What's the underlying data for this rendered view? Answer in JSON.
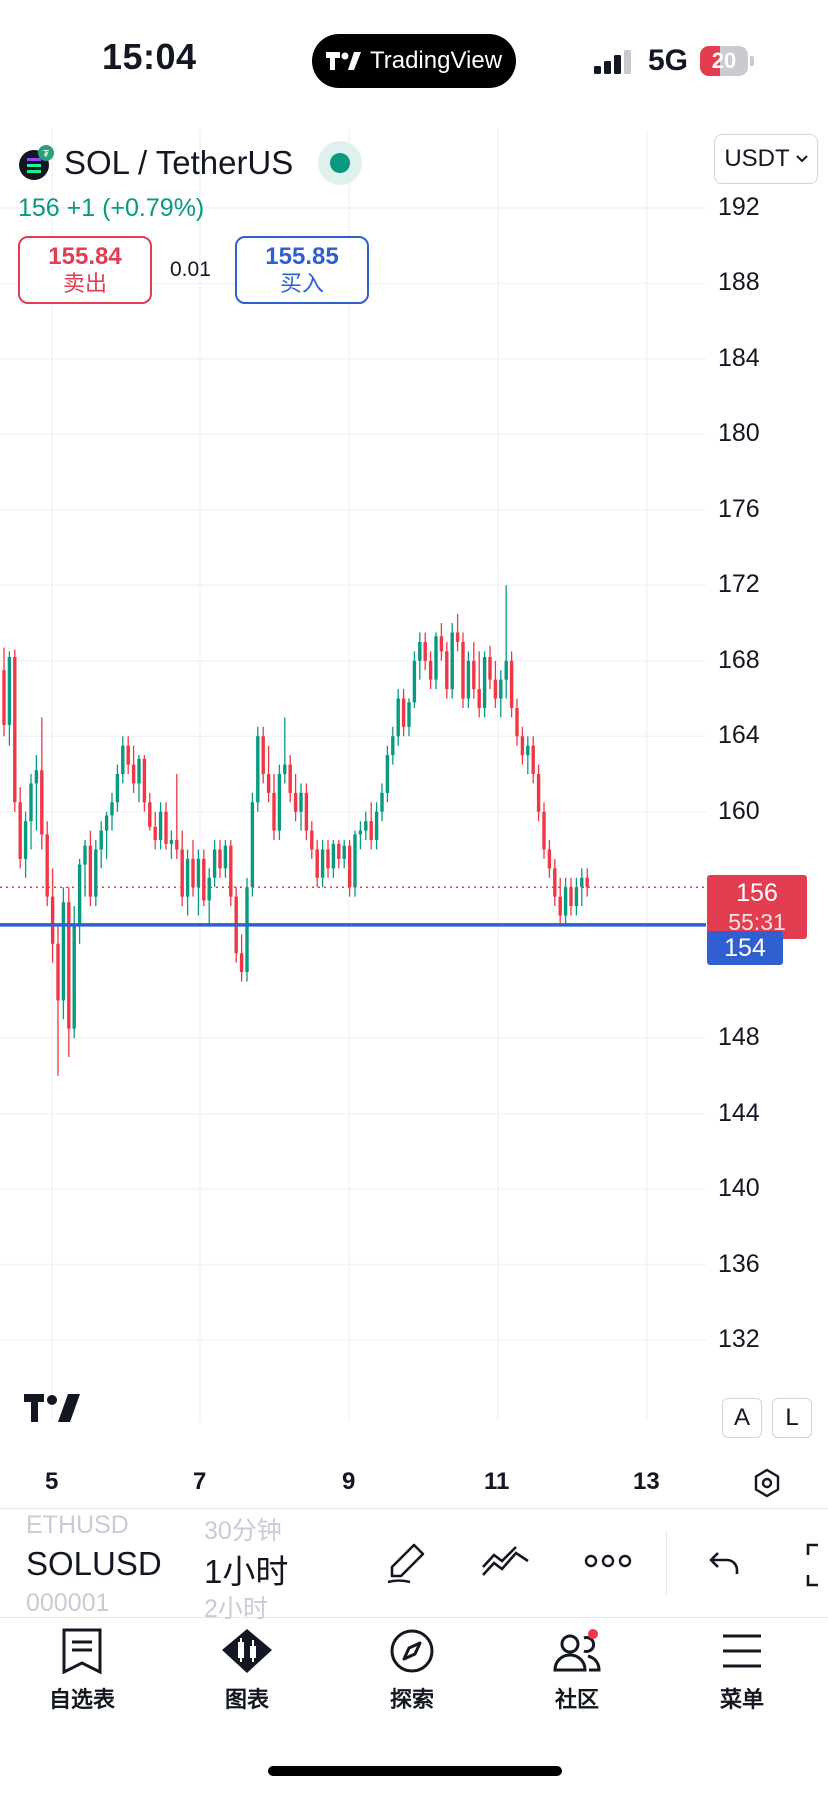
{
  "status_bar": {
    "time": "15:04",
    "app_pill": "TradingView",
    "network": "5G",
    "battery": "20"
  },
  "symbol": {
    "title": "SOL / TetherUS",
    "change_text": "156  +1 (+0.79%)",
    "sell_price": "155.84",
    "sell_label": "卖出",
    "spread": "0.01",
    "buy_price": "155.85",
    "buy_label": "买入",
    "currency": "USDT"
  },
  "chart_data": {
    "type": "candlestick",
    "y_ticks": [
      "192",
      "188",
      "184",
      "180",
      "176",
      "172",
      "168",
      "164",
      "160",
      "148",
      "144",
      "140",
      "136",
      "132"
    ],
    "x_ticks": [
      "5",
      "7",
      "9",
      "11",
      "13"
    ],
    "ylim": [
      130,
      194
    ],
    "last_price": "156",
    "countdown": "55:31",
    "level_line": "154",
    "candles": [
      [
        167.5,
        168.7,
        164.0,
        164.6
      ],
      [
        164.6,
        168.5,
        163.5,
        168.2
      ],
      [
        168.2,
        168.6,
        160.0,
        160.5
      ],
      [
        160.5,
        161.3,
        157.0,
        157.5
      ],
      [
        157.5,
        160.0,
        156.5,
        159.5
      ],
      [
        159.5,
        162.0,
        158.0,
        161.5
      ],
      [
        161.5,
        163.0,
        159.0,
        162.2
      ],
      [
        162.2,
        165.0,
        158.0,
        158.8
      ],
      [
        158.8,
        159.5,
        155.0,
        155.5
      ],
      [
        155.5,
        157.0,
        152.0,
        153.0
      ],
      [
        153.0,
        154.0,
        146.0,
        150.0
      ],
      [
        150.0,
        156.0,
        149.0,
        155.2
      ],
      [
        155.2,
        156.0,
        147.0,
        148.5
      ],
      [
        148.5,
        155.0,
        148.0,
        154.0
      ],
      [
        154.0,
        157.5,
        153.0,
        157.2
      ],
      [
        157.2,
        158.5,
        155.5,
        158.2
      ],
      [
        158.2,
        159.0,
        155.0,
        155.5
      ],
      [
        155.5,
        158.5,
        155.0,
        158.0
      ],
      [
        158.0,
        159.5,
        157.0,
        159.0
      ],
      [
        159.0,
        160.0,
        157.5,
        159.8
      ],
      [
        159.8,
        161.0,
        159.0,
        160.5
      ],
      [
        160.5,
        162.5,
        160.0,
        162.0
      ],
      [
        162.0,
        164.0,
        161.5,
        163.5
      ],
      [
        163.5,
        164.0,
        162.0,
        162.5
      ],
      [
        162.5,
        163.5,
        161.0,
        161.5
      ],
      [
        161.5,
        163.0,
        160.5,
        162.8
      ],
      [
        162.8,
        163.0,
        160.0,
        160.5
      ],
      [
        160.5,
        161.0,
        159.0,
        159.2
      ],
      [
        159.2,
        160.0,
        158.0,
        158.5
      ],
      [
        158.5,
        160.5,
        158.0,
        160.0
      ],
      [
        160.0,
        160.5,
        158.0,
        158.3
      ],
      [
        158.3,
        159.0,
        157.5,
        158.5
      ],
      [
        158.5,
        162.0,
        157.5,
        158.0
      ],
      [
        158.0,
        159.0,
        155.0,
        155.5
      ],
      [
        155.5,
        158.0,
        154.5,
        157.5
      ],
      [
        157.5,
        158.5,
        155.5,
        156.0
      ],
      [
        156.0,
        158.0,
        154.5,
        157.5
      ],
      [
        157.5,
        158.0,
        155.0,
        155.3
      ],
      [
        155.3,
        157.0,
        154.0,
        156.5
      ],
      [
        156.5,
        158.5,
        156.0,
        158.0
      ],
      [
        158.0,
        158.5,
        156.5,
        157.0
      ],
      [
        157.0,
        158.5,
        156.5,
        158.2
      ],
      [
        158.2,
        158.5,
        155.0,
        155.5
      ],
      [
        155.5,
        156.0,
        152.0,
        152.5
      ],
      [
        152.5,
        153.5,
        151.0,
        151.5
      ],
      [
        151.5,
        156.5,
        151.0,
        156.0
      ],
      [
        156.0,
        161.0,
        155.5,
        160.5
      ],
      [
        160.5,
        164.5,
        160.0,
        164.0
      ],
      [
        164.0,
        164.5,
        161.5,
        162.0
      ],
      [
        162.0,
        163.5,
        160.5,
        161.0
      ],
      [
        161.0,
        162.0,
        158.5,
        159.0
      ],
      [
        159.0,
        162.5,
        158.5,
        162.0
      ],
      [
        162.0,
        165.0,
        161.5,
        162.5
      ],
      [
        162.5,
        163.0,
        160.5,
        161.0
      ],
      [
        161.0,
        162.0,
        159.5,
        160.0
      ],
      [
        160.0,
        161.5,
        159.0,
        161.0
      ],
      [
        161.0,
        161.5,
        158.5,
        159.0
      ],
      [
        159.0,
        159.5,
        157.5,
        158.0
      ],
      [
        158.0,
        158.5,
        156.0,
        156.5
      ],
      [
        156.5,
        158.5,
        156.0,
        158.0
      ],
      [
        158.0,
        158.5,
        156.5,
        157.0
      ],
      [
        157.0,
        158.5,
        156.5,
        158.3
      ],
      [
        158.3,
        158.5,
        157.0,
        157.5
      ],
      [
        157.5,
        158.5,
        157.0,
        158.2
      ],
      [
        158.2,
        158.5,
        155.5,
        156.0
      ],
      [
        156.0,
        159.0,
        155.5,
        158.8
      ],
      [
        158.8,
        159.5,
        158.0,
        159.0
      ],
      [
        159.0,
        160.0,
        158.5,
        159.5
      ],
      [
        159.5,
        160.5,
        158.0,
        158.5
      ],
      [
        158.5,
        160.5,
        158.0,
        160.0
      ],
      [
        160.0,
        161.5,
        159.5,
        161.0
      ],
      [
        161.0,
        163.5,
        160.5,
        163.0
      ],
      [
        163.0,
        164.5,
        162.5,
        164.0
      ],
      [
        164.0,
        166.5,
        163.5,
        166.0
      ],
      [
        166.0,
        166.5,
        164.0,
        164.5
      ],
      [
        164.5,
        166.0,
        164.0,
        165.8
      ],
      [
        165.8,
        168.5,
        165.5,
        168.0
      ],
      [
        168.0,
        169.5,
        167.0,
        169.0
      ],
      [
        169.0,
        169.5,
        167.5,
        168.0
      ],
      [
        168.0,
        168.5,
        166.5,
        167.0
      ],
      [
        167.0,
        169.5,
        166.5,
        169.3
      ],
      [
        169.3,
        170.0,
        168.0,
        168.5
      ],
      [
        168.5,
        169.0,
        166.0,
        166.5
      ],
      [
        166.5,
        170.0,
        166.0,
        169.5
      ],
      [
        169.5,
        170.5,
        168.5,
        169.0
      ],
      [
        169.0,
        169.5,
        165.5,
        166.0
      ],
      [
        166.0,
        168.5,
        165.5,
        168.0
      ],
      [
        168.0,
        169.0,
        166.0,
        166.5
      ],
      [
        166.5,
        168.5,
        165.0,
        165.5
      ],
      [
        165.5,
        168.5,
        165.0,
        168.2
      ],
      [
        168.2,
        168.8,
        166.5,
        167.0
      ],
      [
        167.0,
        168.0,
        165.5,
        166.0
      ],
      [
        166.0,
        167.5,
        165.0,
        167.0
      ],
      [
        167.0,
        172.0,
        166.0,
        168.0
      ],
      [
        168.0,
        168.5,
        165.0,
        165.5
      ],
      [
        165.5,
        166.0,
        163.5,
        164.0
      ],
      [
        164.0,
        164.5,
        162.5,
        163.0
      ],
      [
        163.0,
        164.0,
        162.0,
        163.5
      ],
      [
        163.5,
        164.0,
        161.5,
        162.0
      ],
      [
        162.0,
        162.5,
        159.5,
        160.0
      ],
      [
        160.0,
        160.5,
        157.5,
        158.0
      ],
      [
        158.0,
        158.5,
        156.5,
        157.0
      ],
      [
        157.0,
        157.5,
        155.0,
        155.5
      ],
      [
        155.5,
        156.5,
        154.0,
        154.5
      ],
      [
        154.5,
        156.5,
        154.0,
        156.0
      ],
      [
        156.0,
        156.5,
        154.5,
        155.0
      ],
      [
        155.0,
        156.5,
        154.5,
        156.0
      ],
      [
        156.0,
        157.0,
        155.0,
        156.5
      ],
      [
        156.5,
        157.0,
        155.5,
        156.0
      ]
    ]
  },
  "toolbar": {
    "prev_symbol": "ETHUSD",
    "symbol": "SOLUSD",
    "next_symbol": "000001",
    "prev_interval": "30分钟",
    "interval": "1小时",
    "next_interval": "2小时",
    "scale_auto": "A",
    "scale_log": "L"
  },
  "nav": {
    "watchlist": "自选表",
    "chart": "图表",
    "explore": "探索",
    "community": "社区",
    "menu": "菜单"
  },
  "colors": {
    "up": "#089981",
    "down": "#f23645",
    "level": "#2f5fd0",
    "last_tag": "#e23d51"
  }
}
